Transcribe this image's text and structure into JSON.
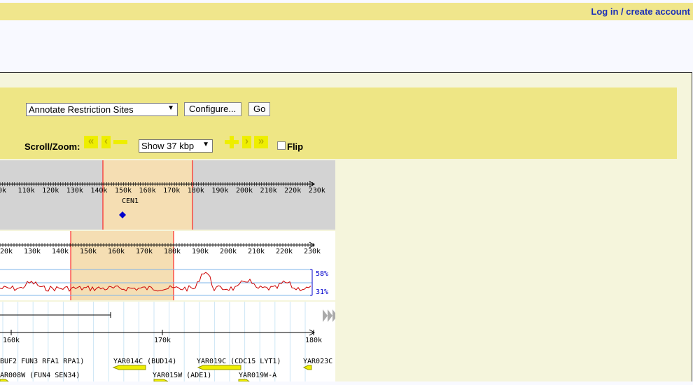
{
  "header": {
    "login_label": "Log in / create account"
  },
  "controls": {
    "track_select_value": "Annotate Restriction Sites",
    "configure_label": "Configure...",
    "go_label": "Go",
    "scroll_zoom_label": "Scroll/Zoom:",
    "zoom_select_value": "Show 37 kbp",
    "flip_label": "Flip",
    "nav_icons": [
      "scroll-left-far-icon",
      "scroll-left-icon",
      "zoom-out-icon",
      "zoom-in-icon",
      "scroll-right-icon",
      "scroll-right-far-icon"
    ]
  },
  "overview": {
    "ticks": [
      "0k",
      "110k",
      "120k",
      "130k",
      "140k",
      "150k",
      "160k",
      "170k",
      "180k",
      "190k",
      "200k",
      "210k",
      "220k",
      "230k"
    ],
    "feature_label": "CEN1"
  },
  "region": {
    "ticks": [
      "120k",
      "130k",
      "140k",
      "150k",
      "160k",
      "170k",
      "180k",
      "190k",
      "200k",
      "210k",
      "220k",
      "230k"
    ],
    "gc_high": "58%",
    "gc_low": "31%"
  },
  "detail": {
    "ticks": [
      "160k",
      "170k",
      "180k"
    ],
    "genes_row1": [
      "BUF2 FUN3 RFA1 RPA1)",
      "YAR014C (BUD14)",
      "YAR019C (CDC15 LYT1)",
      "YAR023C"
    ],
    "genes_row2": [
      "AR008W (FUN4 SEN34)",
      "YAR015W (ADE1)",
      "YAR019W-A"
    ]
  },
  "colors": {
    "topbar": "#f0e68c",
    "controls": "#eee685",
    "gc_line": "#cc0000",
    "highlight": "#f5deb3",
    "link": "#1b2fb8"
  }
}
